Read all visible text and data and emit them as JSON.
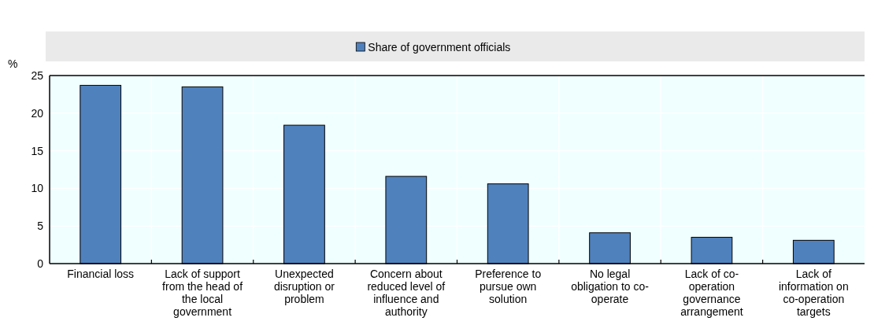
{
  "chart_data": {
    "type": "bar",
    "ylabel": "%",
    "categories": [
      "Financial loss",
      "Lack of support from the head of the local government",
      "Unexpected disruption or problem",
      "Concern about reduced level of influence and authority",
      "Preference to pursue own solution",
      "No legal obligation to co-operate",
      "Lack of co-operation governance arrangement",
      "Lack of information on co-operation targets"
    ],
    "series": [
      {
        "name": "Share of government officials",
        "color": "#4f81bd",
        "values": [
          23.7,
          23.5,
          18.4,
          11.6,
          10.6,
          4.1,
          3.5,
          3.1
        ]
      }
    ],
    "ylim": [
      0,
      25
    ],
    "yticks": [
      0,
      5,
      10,
      15,
      20,
      25
    ],
    "grid": true,
    "legend": "top"
  }
}
